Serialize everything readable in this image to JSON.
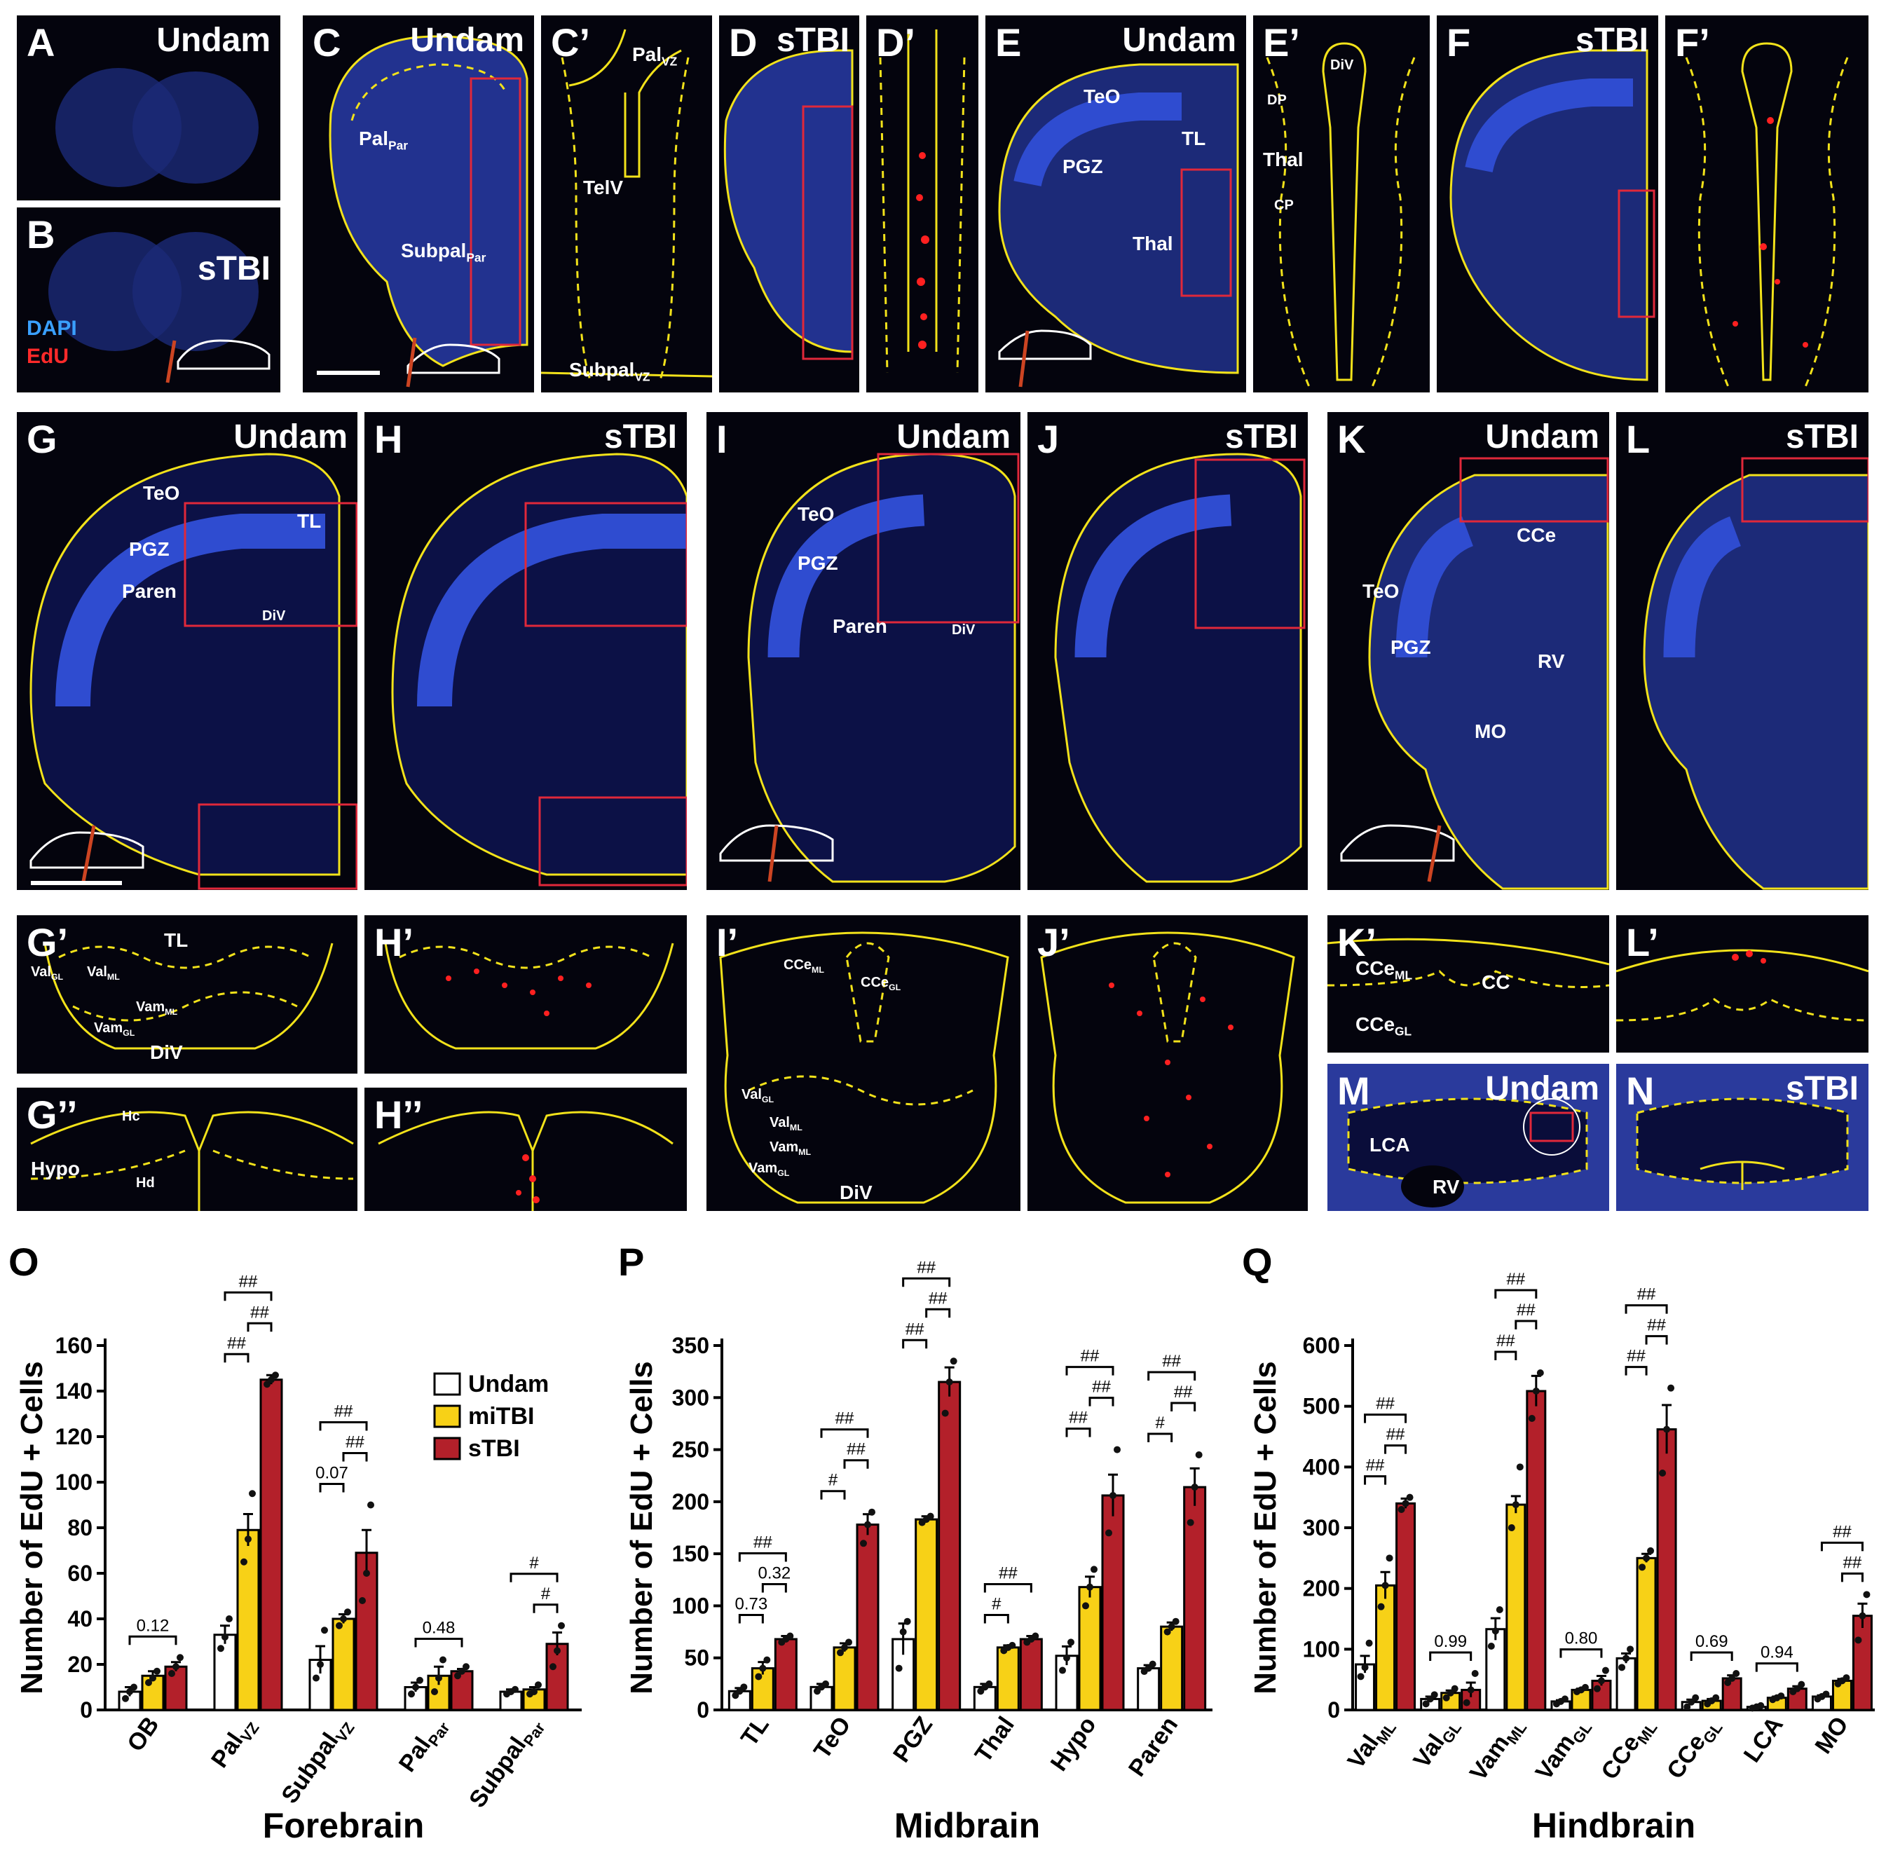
{
  "panels": {
    "A": {
      "label": "A",
      "cond": "Undam"
    },
    "B": {
      "label": "B",
      "cond": "sTBI",
      "stain1": "DAPI",
      "stain2": "EdU"
    },
    "C": {
      "label": "C",
      "cond": "Undam",
      "r1": "Pal",
      "r1s": "Par",
      "r2": "Subpal",
      "r2s": "Par"
    },
    "C2": {
      "label": "C’",
      "r1": "Pal",
      "r1s": "VZ",
      "r2": "TelV",
      "r3": "Subpal",
      "r3s": "VZ"
    },
    "D": {
      "label": "D",
      "cond": "sTBI"
    },
    "D2": {
      "label": "D’"
    },
    "E": {
      "label": "E",
      "cond": "Undam",
      "r1": "TeO",
      "r2": "PGZ",
      "r3": "TL",
      "r4": "Thal"
    },
    "E2": {
      "label": "E’",
      "r1": "DiV",
      "r2": "DP",
      "r3": "Thal",
      "r4": "CP"
    },
    "F": {
      "label": "F",
      "cond": "sTBI"
    },
    "F2": {
      "label": "F’"
    },
    "G": {
      "label": "G",
      "cond": "Undam",
      "r1": "TeO",
      "r2": "PGZ",
      "r3": "TL",
      "r4": "Paren",
      "r5": "DiV"
    },
    "H": {
      "label": "H",
      "cond": "sTBI"
    },
    "I": {
      "label": "I",
      "cond": "Undam",
      "r1": "TeO",
      "r2": "PGZ",
      "r3": "Paren",
      "r4": "DiV"
    },
    "J": {
      "label": "J",
      "cond": "sTBI"
    },
    "K": {
      "label": "K",
      "cond": "Undam",
      "r1": "CCe",
      "r2": "TeO",
      "r3": "PGZ",
      "r4": "RV",
      "r5": "MO"
    },
    "L": {
      "label": "L",
      "cond": "sTBI"
    },
    "G2": {
      "label": "G’",
      "r1": "TL",
      "r2": "Val",
      "r2s": "GL",
      "r3": "Val",
      "r3s": "ML",
      "r4": "Vam",
      "r4s": "ML",
      "r5": "Vam",
      "r5s": "GL",
      "r6": "DiV"
    },
    "H2": {
      "label": "H’"
    },
    "G3": {
      "label": "G’’",
      "r1": "Hc",
      "r2": "Hypo",
      "r3": "Hd"
    },
    "H3": {
      "label": "H’’"
    },
    "I2": {
      "label": "I’",
      "r1": "CCe",
      "r1s": "ML",
      "r2": "CCe",
      "r2s": "GL",
      "r3": "Val",
      "r3s": "GL",
      "r4": "Val",
      "r4s": "ML",
      "r5": "Vam",
      "r5s": "ML",
      "r6": "Vam",
      "r6s": "GL",
      "r7": "DiV"
    },
    "J2": {
      "label": "J’"
    },
    "K2": {
      "label": "K’",
      "r1": "CCe",
      "r1s": "ML",
      "r2": "CC",
      "r3": "CCe",
      "r3s": "GL"
    },
    "L2": {
      "label": "L’"
    },
    "M": {
      "label": "M",
      "cond": "Undam",
      "r1": "LCA",
      "r2": "RV"
    },
    "N": {
      "label": "N",
      "cond": "sTBI"
    }
  },
  "colors": {
    "undam": "#ffffff",
    "mitbi": "#f7d117",
    "stbi": "#b3202a",
    "outline": "#f2e21a",
    "dapi": "#2c3fb8",
    "edu": "#ff2020"
  },
  "chart_data": [
    {
      "type": "bar",
      "panel": "O",
      "ylabel": "Number of EdU + Cells",
      "xlabel": "Forebrain",
      "ylim": [
        0,
        160
      ],
      "yticks": [
        0,
        20,
        40,
        60,
        80,
        100,
        120,
        140,
        160
      ],
      "categories": [
        {
          "main": "OB",
          "sub": ""
        },
        {
          "main": "Pal",
          "sub": "VZ"
        },
        {
          "main": "Subpal",
          "sub": "VZ"
        },
        {
          "main": "Pal",
          "sub": "Par"
        },
        {
          "main": "Subpal",
          "sub": "Par"
        }
      ],
      "series": [
        {
          "name": "Undam",
          "values": [
            8,
            33,
            22,
            10,
            8
          ],
          "err": [
            2,
            4,
            6,
            2,
            1
          ],
          "points": [
            [
              5,
              8,
              10
            ],
            [
              27,
              32,
              40
            ],
            [
              14,
              20,
              35
            ],
            [
              7,
              10,
              13
            ],
            [
              7,
              8,
              9
            ]
          ]
        },
        {
          "name": "miTBI",
          "values": [
            15,
            79,
            40,
            15,
            9
          ],
          "err": [
            2,
            7,
            2,
            4,
            1
          ],
          "points": [
            [
              12,
              14,
              17
            ],
            [
              65,
              75,
              95
            ],
            [
              37,
              40,
              43
            ],
            [
              8,
              14,
              22
            ],
            [
              7,
              8,
              11
            ]
          ]
        },
        {
          "name": "sTBI",
          "values": [
            19,
            145,
            69,
            17,
            29
          ],
          "err": [
            2,
            2,
            10,
            1,
            5
          ],
          "points": [
            [
              16,
              19,
              23
            ],
            [
              143,
              145,
              147
            ],
            [
              48,
              60,
              90
            ],
            [
              15,
              17,
              19
            ],
            [
              19,
              26,
              37
            ]
          ]
        }
      ],
      "annotations": [
        {
          "cat": 0,
          "a": 0,
          "b": 2,
          "text": "0.12",
          "level": 1
        },
        {
          "cat": 1,
          "a": 0,
          "b": 1,
          "text": "##",
          "level": 1
        },
        {
          "cat": 1,
          "a": 1,
          "b": 2,
          "text": "##",
          "level": 2
        },
        {
          "cat": 1,
          "a": 0,
          "b": 2,
          "text": "##",
          "level": 3
        },
        {
          "cat": 2,
          "a": 0,
          "b": 1,
          "text": "0.07",
          "level": 1
        },
        {
          "cat": 2,
          "a": 1,
          "b": 2,
          "text": "##",
          "level": 2
        },
        {
          "cat": 2,
          "a": 0,
          "b": 2,
          "text": "##",
          "level": 3
        },
        {
          "cat": 3,
          "a": 0,
          "b": 2,
          "text": "0.48",
          "level": 1
        },
        {
          "cat": 4,
          "a": 1,
          "b": 2,
          "text": "#",
          "level": 1
        },
        {
          "cat": 4,
          "a": 0,
          "b": 2,
          "text": "#",
          "level": 2
        }
      ],
      "legend": [
        "Undam",
        "miTBI",
        "sTBI"
      ]
    },
    {
      "type": "bar",
      "panel": "P",
      "ylabel": "Number of EdU + Cells",
      "xlabel": "Midbrain",
      "ylim": [
        0,
        350
      ],
      "yticks": [
        0,
        50,
        100,
        150,
        200,
        250,
        300,
        350
      ],
      "categories": [
        {
          "main": "TL",
          "sub": ""
        },
        {
          "main": "TeO",
          "sub": ""
        },
        {
          "main": "PGZ",
          "sub": ""
        },
        {
          "main": "Thal",
          "sub": ""
        },
        {
          "main": "Hypo",
          "sub": ""
        },
        {
          "main": "Paren",
          "sub": ""
        }
      ],
      "series": [
        {
          "name": "Undam",
          "values": [
            18,
            22,
            68,
            22,
            52,
            40
          ],
          "err": [
            3,
            3,
            15,
            3,
            9,
            3
          ],
          "points": [
            [
              14,
              18,
              22
            ],
            [
              18,
              22,
              25
            ],
            [
              40,
              75,
              85
            ],
            [
              18,
              22,
              25
            ],
            [
              38,
              50,
              65
            ],
            [
              37,
              40,
              44
            ]
          ]
        },
        {
          "name": "miTBI",
          "values": [
            40,
            60,
            183,
            60,
            118,
            80
          ],
          "err": [
            6,
            4,
            3,
            2,
            10,
            4
          ],
          "points": [
            [
              32,
              40,
              48
            ],
            [
              55,
              60,
              65
            ],
            [
              180,
              183,
              186
            ],
            [
              57,
              60,
              62
            ],
            [
              100,
              118,
              135
            ],
            [
              75,
              80,
              85
            ]
          ]
        },
        {
          "name": "sTBI",
          "values": [
            68,
            178,
            315,
            68,
            206,
            214
          ],
          "err": [
            3,
            10,
            14,
            3,
            20,
            18
          ],
          "points": [
            [
              65,
              68,
              71
            ],
            [
              160,
              178,
              190
            ],
            [
              285,
              315,
              335
            ],
            [
              65,
              68,
              71
            ],
            [
              170,
              206,
              250
            ],
            [
              180,
              214,
              245
            ]
          ]
        }
      ],
      "annotations": [
        {
          "cat": 0,
          "a": 0,
          "b": 1,
          "text": "0.73",
          "level": 1
        },
        {
          "cat": 0,
          "a": 1,
          "b": 2,
          "text": "0.32",
          "level": 2
        },
        {
          "cat": 0,
          "a": 0,
          "b": 2,
          "text": "##",
          "level": 3
        },
        {
          "cat": 1,
          "a": 0,
          "b": 1,
          "text": "#",
          "level": 1
        },
        {
          "cat": 1,
          "a": 1,
          "b": 2,
          "text": "##",
          "level": 2
        },
        {
          "cat": 1,
          "a": 0,
          "b": 2,
          "text": "##",
          "level": 3
        },
        {
          "cat": 2,
          "a": 0,
          "b": 1,
          "text": "##",
          "level": 1
        },
        {
          "cat": 2,
          "a": 1,
          "b": 2,
          "text": "##",
          "level": 2
        },
        {
          "cat": 2,
          "a": 0,
          "b": 2,
          "text": "##",
          "level": 3
        },
        {
          "cat": 3,
          "a": 0,
          "b": 1,
          "text": "#",
          "level": 1
        },
        {
          "cat": 3,
          "a": 0,
          "b": 2,
          "text": "##",
          "level": 2
        },
        {
          "cat": 4,
          "a": 0,
          "b": 1,
          "text": "##",
          "level": 1
        },
        {
          "cat": 4,
          "a": 1,
          "b": 2,
          "text": "##",
          "level": 2
        },
        {
          "cat": 4,
          "a": 0,
          "b": 2,
          "text": "##",
          "level": 3
        },
        {
          "cat": 5,
          "a": 0,
          "b": 1,
          "text": "#",
          "level": 1
        },
        {
          "cat": 5,
          "a": 1,
          "b": 2,
          "text": "##",
          "level": 2
        },
        {
          "cat": 5,
          "a": 0,
          "b": 2,
          "text": "##",
          "level": 3
        }
      ]
    },
    {
      "type": "bar",
      "panel": "Q",
      "ylabel": "Number of EdU + Cells",
      "xlabel": "Hindbrain",
      "ylim": [
        0,
        600
      ],
      "yticks": [
        0,
        100,
        200,
        300,
        400,
        500,
        600
      ],
      "categories": [
        {
          "main": "Val",
          "sub": "ML"
        },
        {
          "main": "Val",
          "sub": "GL"
        },
        {
          "main": "Vam",
          "sub": "ML"
        },
        {
          "main": "Vam",
          "sub": "GL"
        },
        {
          "main": "CCe",
          "sub": "ML"
        },
        {
          "main": "CCe",
          "sub": "GL"
        },
        {
          "main": "LCA",
          "sub": ""
        },
        {
          "main": "MO",
          "sub": ""
        }
      ],
      "series": [
        {
          "name": "Undam",
          "values": [
            75,
            18,
            133,
            14,
            85,
            13,
            5,
            22
          ],
          "err": [
            14,
            4,
            18,
            2,
            8,
            4,
            1,
            2
          ],
          "points": [
            [
              55,
              70,
              110
            ],
            [
              10,
              18,
              25
            ],
            [
              105,
              130,
              165
            ],
            [
              10,
              14,
              18
            ],
            [
              70,
              85,
              100
            ],
            [
              5,
              13,
              20
            ],
            [
              3,
              5,
              7
            ],
            [
              18,
              22,
              26
            ]
          ]
        },
        {
          "name": "miTBI",
          "values": [
            205,
            28,
            338,
            33,
            250,
            15,
            20,
            48
          ],
          "err": [
            22,
            4,
            14,
            2,
            7,
            3,
            2,
            3
          ],
          "points": [
            [
              170,
              205,
              250
            ],
            [
              20,
              28,
              35
            ],
            [
              300,
              338,
              400
            ],
            [
              30,
              33,
              37
            ],
            [
              235,
              250,
              262
            ],
            [
              10,
              15,
              20
            ],
            [
              17,
              20,
              23
            ],
            [
              43,
              48,
              53
            ]
          ]
        },
        {
          "name": "sTBI",
          "values": [
            340,
            33,
            525,
            48,
            462,
            52,
            35,
            155
          ],
          "err": [
            8,
            12,
            25,
            8,
            40,
            5,
            4,
            20
          ],
          "points": [
            [
              330,
              340,
              350
            ],
            [
              12,
              33,
              60
            ],
            [
              480,
              525,
              555
            ],
            [
              35,
              48,
              65
            ],
            [
              390,
              462,
              530
            ],
            [
              45,
              52,
              60
            ],
            [
              30,
              35,
              42
            ],
            [
              115,
              155,
              190
            ]
          ]
        }
      ],
      "annotations": [
        {
          "cat": 0,
          "a": 0,
          "b": 1,
          "text": "##",
          "level": 1
        },
        {
          "cat": 0,
          "a": 1,
          "b": 2,
          "text": "##",
          "level": 2
        },
        {
          "cat": 0,
          "a": 0,
          "b": 2,
          "text": "##",
          "level": 3
        },
        {
          "cat": 1,
          "a": 0,
          "b": 2,
          "text": "0.99",
          "level": 1
        },
        {
          "cat": 2,
          "a": 0,
          "b": 1,
          "text": "##",
          "level": 1
        },
        {
          "cat": 2,
          "a": 1,
          "b": 2,
          "text": "##",
          "level": 2
        },
        {
          "cat": 2,
          "a": 0,
          "b": 2,
          "text": "##",
          "level": 3
        },
        {
          "cat": 3,
          "a": 0,
          "b": 2,
          "text": "0.80",
          "level": 1
        },
        {
          "cat": 4,
          "a": 0,
          "b": 1,
          "text": "##",
          "level": 1
        },
        {
          "cat": 4,
          "a": 1,
          "b": 2,
          "text": "##",
          "level": 2
        },
        {
          "cat": 4,
          "a": 0,
          "b": 2,
          "text": "##",
          "level": 3
        },
        {
          "cat": 5,
          "a": 0,
          "b": 2,
          "text": "0.69",
          "level": 1
        },
        {
          "cat": 6,
          "a": 0,
          "b": 2,
          "text": "0.94",
          "level": 1
        },
        {
          "cat": 7,
          "a": 1,
          "b": 2,
          "text": "##",
          "level": 1
        },
        {
          "cat": 7,
          "a": 0,
          "b": 2,
          "text": "##",
          "level": 2
        }
      ]
    }
  ]
}
